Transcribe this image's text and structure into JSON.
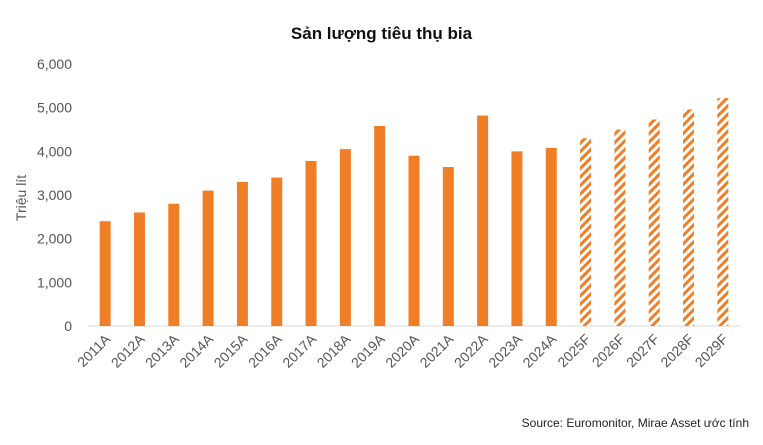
{
  "chart_data": {
    "type": "bar",
    "title": "Sản lượng tiêu thụ bia",
    "ylabel": "Triệu lít",
    "xlabel": "",
    "ylim": [
      0,
      6000
    ],
    "yticks": [
      "0",
      "1,000",
      "2,000",
      "3,000",
      "4,000",
      "5,000",
      "6,000"
    ],
    "ytick_values": [
      0,
      1000,
      2000,
      3000,
      4000,
      5000,
      6000
    ],
    "categories": [
      "2011A",
      "2012A",
      "2013A",
      "2014A",
      "2015A",
      "2016A",
      "2017A",
      "2018A",
      "2019A",
      "2020A",
      "2021A",
      "2022A",
      "2023A",
      "2024A",
      "2025F",
      "2026F",
      "2027F",
      "2028F",
      "2029F"
    ],
    "values": [
      2400,
      2600,
      2800,
      3100,
      3300,
      3400,
      3780,
      4050,
      4580,
      3900,
      3640,
      4820,
      4000,
      4080,
      4300,
      4500,
      4730,
      4960,
      5220
    ],
    "forecast_flags": [
      false,
      false,
      false,
      false,
      false,
      false,
      false,
      false,
      false,
      false,
      false,
      false,
      false,
      false,
      true,
      true,
      true,
      true,
      true
    ],
    "bar_color": "#f07e26",
    "source": "Source: Euromonitor, Mirae Asset ước tính"
  }
}
